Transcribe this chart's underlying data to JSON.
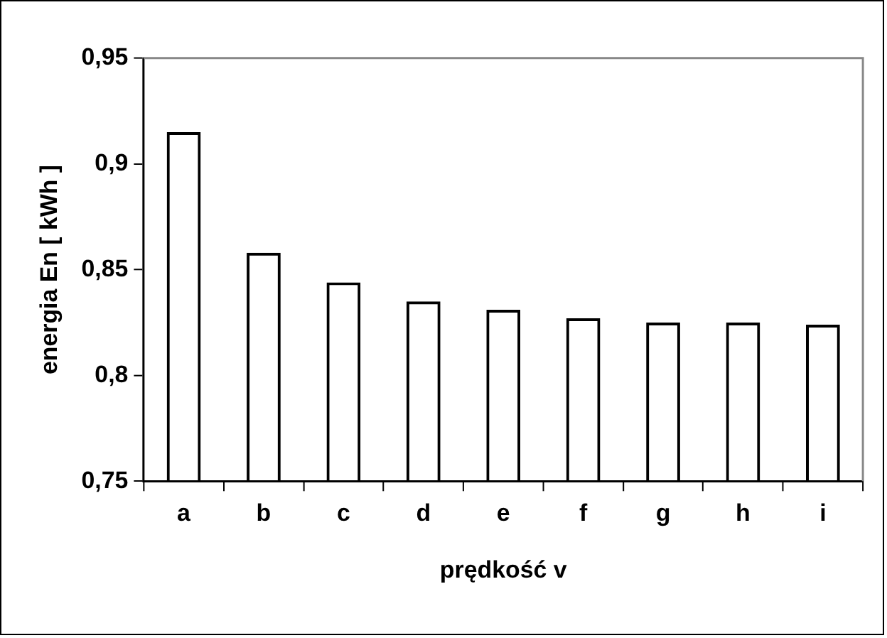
{
  "chart_data": {
    "type": "bar",
    "xlabel": "prędkość v",
    "ylabel": "energia En [ kWh ]",
    "categories": [
      "a",
      "b",
      "c",
      "d",
      "e",
      "f",
      "g",
      "h",
      "i"
    ],
    "values": [
      0.915,
      0.858,
      0.844,
      0.835,
      0.831,
      0.827,
      0.825,
      0.825,
      0.824
    ],
    "color": "#000000",
    "ylim": [
      0.75,
      0.95
    ],
    "yticks": [
      {
        "value": 0.75,
        "label": "0,75"
      },
      {
        "value": 0.8,
        "label": "0,8"
      },
      {
        "value": 0.85,
        "label": "0,85"
      },
      {
        "value": 0.9,
        "label": "0,9"
      },
      {
        "value": 0.95,
        "label": "0,95"
      }
    ],
    "grid": false,
    "legend": false
  }
}
